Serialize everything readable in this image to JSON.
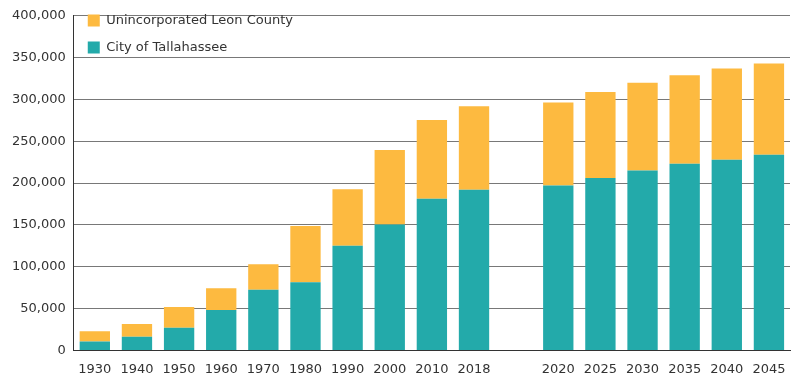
{
  "chart_data": {
    "type": "bar",
    "stacked": true,
    "grid": true,
    "legend": "top-left",
    "categories": [
      "1930",
      "1940",
      "1950",
      "1960",
      "1970",
      "1980",
      "1990",
      "2000",
      "2010",
      "2018",
      null,
      "2020",
      "2025",
      "2030",
      "2035",
      "2040",
      "2045"
    ],
    "series": [
      {
        "name": "City of Tallahassee",
        "color": "#23aaaa",
        "values": [
          10700,
          16200,
          27200,
          48200,
          72600,
          81500,
          125000,
          150600,
          181400,
          192000,
          null,
          197000,
          206000,
          215000,
          223000,
          228000,
          234000
        ]
      },
      {
        "name": "Unincorporated Leon County",
        "color": "#fdba40",
        "values": [
          12300,
          15400,
          24800,
          26000,
          30400,
          67100,
          67500,
          88900,
          94100,
          100000,
          null,
          99500,
          103000,
          105000,
          106000,
          109000,
          109000
        ]
      }
    ],
    "ylim": [
      0,
      400000
    ],
    "yticks": [
      0,
      {
        "value": 50000,
        "label": "50,000"
      },
      {
        "value": 100000,
        "label": "100,000"
      },
      {
        "value": 150000,
        "label": "150,000"
      },
      {
        "value": 200000,
        "label": "200,000"
      },
      {
        "value": 250000,
        "label": "250,000"
      },
      {
        "value": 300000,
        "label": "300,000"
      },
      {
        "value": 350000,
        "label": "350,000"
      },
      {
        "value": 400000,
        "label": "400,000"
      }
    ]
  }
}
